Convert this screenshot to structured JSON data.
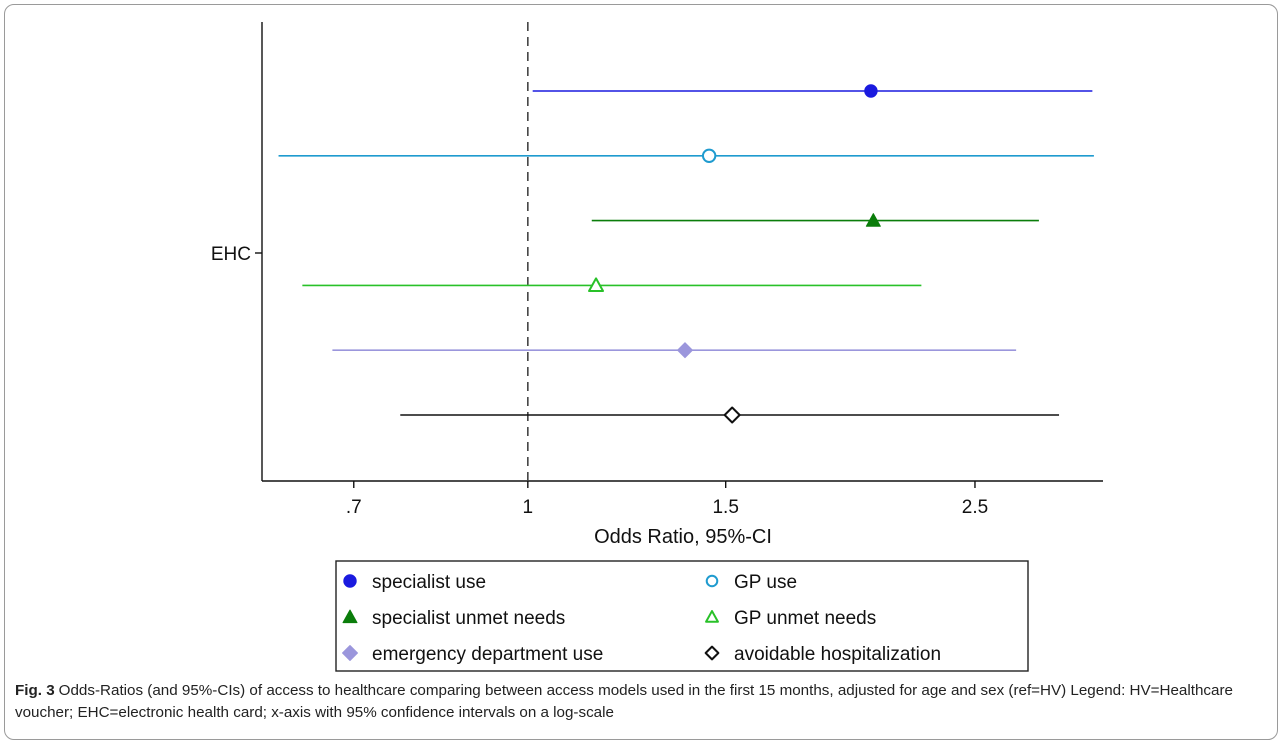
{
  "chart_data": {
    "type": "forest",
    "xlabel": "Odds Ratio, 95%-CI",
    "ylabel_category": "EHC",
    "x_scale": "log",
    "xlim": [
      0.58,
      3.25
    ],
    "x_ticks": [
      {
        "value": 0.7,
        "label": ".7"
      },
      {
        "value": 1,
        "label": "1"
      },
      {
        "value": 1.5,
        "label": "1.5"
      },
      {
        "value": 2.5,
        "label": "2.5"
      }
    ],
    "reference_line": 1,
    "series": [
      {
        "name": "specialist use",
        "or": 2.02,
        "ci_low": 1.01,
        "ci_high": 3.18,
        "color": "#1a1adf",
        "marker": "circle-filled"
      },
      {
        "name": "GP use",
        "or": 1.45,
        "ci_low": 0.6,
        "ci_high": 3.19,
        "color": "#1f9bcf",
        "marker": "circle-hollow"
      },
      {
        "name": "specialist unmet needs",
        "or": 2.03,
        "ci_low": 1.14,
        "ci_high": 2.85,
        "color": "#0a7d0a",
        "marker": "triangle-filled"
      },
      {
        "name": "GP unmet needs",
        "or": 1.15,
        "ci_low": 0.63,
        "ci_high": 2.24,
        "color": "#29c129",
        "marker": "triangle-hollow"
      },
      {
        "name": "emergency department use",
        "or": 1.38,
        "ci_low": 0.67,
        "ci_high": 2.72,
        "color": "#9b96dc",
        "marker": "diamond-filled"
      },
      {
        "name": "avoidable hospitalization",
        "or": 1.52,
        "ci_low": 0.77,
        "ci_high": 2.97,
        "color": "#111111",
        "marker": "diamond-hollow"
      }
    ],
    "legend": {
      "columns": 2,
      "placement": "bottom-center"
    }
  },
  "caption": {
    "label": "Fig. 3",
    "text": "Odds-Ratios (and 95%-CIs) of access to healthcare comparing between access models used in the first 15 months, adjusted for age and sex (ref=HV) Legend: HV=Healthcare voucher; EHC=electronic health card; x-axis with 95% confidence intervals on a log-scale"
  }
}
